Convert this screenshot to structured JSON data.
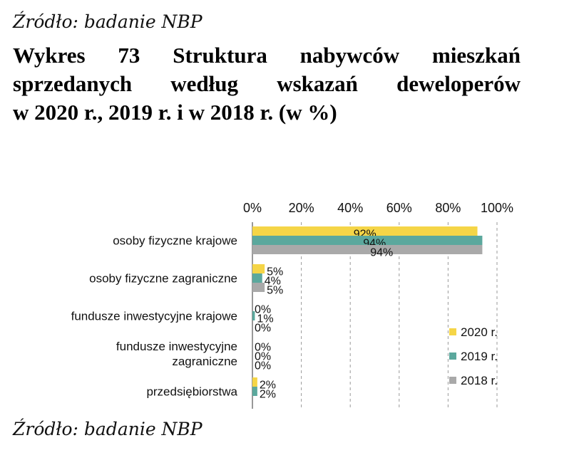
{
  "source_top": "Źródło: badanie NBP",
  "title": {
    "lines": [
      "Wykres 73 Struktura nabywców mieszkań",
      "sprzedanych według wskazań deweloperów",
      "w 2020 r., 2019 r. i w 2018 r. (w %)"
    ]
  },
  "source_bottom": "Źródło: badanie NBP",
  "colors": {
    "2020 r.": "#F5D547",
    "2019 r.": "#5BA89D",
    "2018 r.": "#A9A9A9"
  },
  "chart_data": {
    "type": "bar",
    "orientation": "horizontal",
    "title": "Struktura nabywców mieszkań sprzedanych według wskazań deweloperów w 2020 r., 2019 r. i w 2018 r. (w %)",
    "categories": [
      [
        "osoby fizyczne krajowe"
      ],
      [
        "osoby fizyczne zagraniczne"
      ],
      [
        "fundusze inwestycyjne krajowe"
      ],
      [
        "fundusze inwestycyjne",
        "zagraniczne"
      ],
      [
        "przedsiębiorstwa"
      ]
    ],
    "series": [
      {
        "name": "2020 r.",
        "values": [
          92,
          5,
          0,
          0,
          2
        ],
        "labels": [
          "92%",
          "5%",
          "0%",
          "0%",
          "2%"
        ]
      },
      {
        "name": "2019 r.",
        "values": [
          94,
          4,
          1,
          0,
          2
        ],
        "labels": [
          "94%",
          "4%",
          "1%",
          "0%",
          "2%"
        ]
      },
      {
        "name": "2018 r.",
        "values": [
          94,
          5,
          0,
          0,
          null
        ],
        "labels": [
          "94%",
          "5%",
          "0%",
          "0%",
          null
        ]
      }
    ],
    "xlim": [
      0,
      100
    ],
    "x_ticks": [
      "0%",
      "20%",
      "40%",
      "60%",
      "80%",
      "100%"
    ],
    "axis_position": "top",
    "grid": "vertical dashed",
    "legend": {
      "position": "right",
      "entries": [
        "2020 r.",
        "2019 r.",
        "2018 r."
      ]
    }
  }
}
